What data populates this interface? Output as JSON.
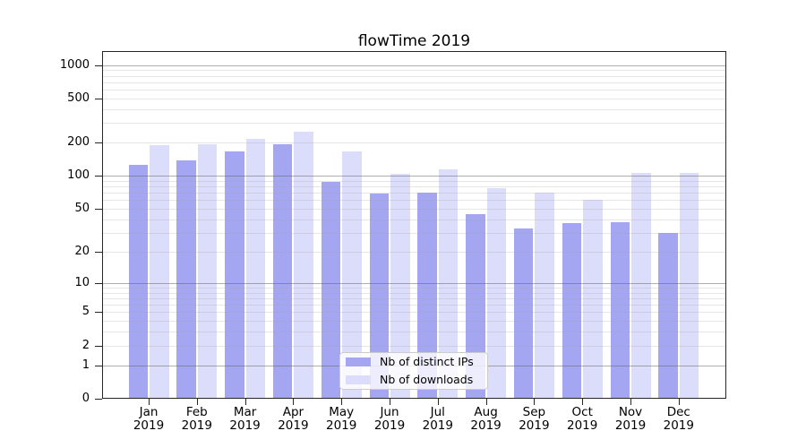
{
  "title": "flowTime 2019",
  "chart_data": {
    "type": "bar",
    "title": "flowTime 2019",
    "categories": [
      "Jan 2019",
      "Feb 2019",
      "Mar 2019",
      "Apr 2019",
      "May 2019",
      "Jun 2019",
      "Jul 2019",
      "Aug 2019",
      "Sep 2019",
      "Oct 2019",
      "Nov 2019",
      "Dec 2019"
    ],
    "series": [
      {
        "name": "Nb of distinct IPs",
        "color": "#a5a6f2",
        "values": [
          126,
          139,
          168,
          193,
          88,
          69,
          71,
          45,
          33,
          37,
          38,
          30
        ]
      },
      {
        "name": "Nb of downloads",
        "color": "#dcddfa",
        "values": [
          191,
          192,
          218,
          251,
          165,
          105,
          115,
          77,
          70,
          60,
          107,
          106
        ]
      }
    ],
    "y_scale": "log1p",
    "y_ticks": [
      0,
      1,
      2,
      5,
      10,
      20,
      50,
      100,
      200,
      500,
      1000
    ],
    "ylim": [
      0,
      1300
    ],
    "xlabel": "",
    "ylabel": "",
    "grid": true,
    "legend_position": "lower center"
  },
  "legend": {
    "items": [
      {
        "label": "Nb of distinct IPs",
        "color": "#a5a6f2"
      },
      {
        "label": "Nb of downloads",
        "color": "#dcddfa"
      }
    ]
  },
  "colors": {
    "background": "#ffffff",
    "axis": "#262626",
    "grid_major": "#b3b3b3",
    "grid_minor": "#e9e9e9",
    "legend_border": "#cccccc",
    "text": "#000000"
  }
}
